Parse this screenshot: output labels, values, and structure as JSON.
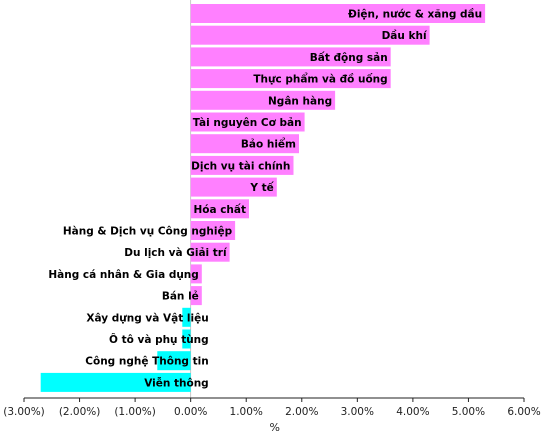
{
  "chart_data": {
    "type": "bar",
    "orientation": "horizontal",
    "xlabel": "%",
    "xlim": [
      -3,
      6
    ],
    "grid": false,
    "positive_color": "#ff80ff",
    "negative_color": "#00ffff",
    "x_ticks": [
      "(3.00%)",
      "(2.00%)",
      "(1.00%)",
      "0.00%",
      "1.00%",
      "2.00%",
      "3.00%",
      "4.00%",
      "5.00%",
      "6.00%"
    ],
    "categories": [
      "Điện, nước & xăng dầu",
      "Dầu khí",
      "Bất động sản",
      "Thực phẩm và đồ uống",
      "Ngân hàng",
      "Tài nguyên Cơ bản",
      "Bảo hiểm",
      "Dịch vụ tài chính",
      "Y tế",
      "Hóa chất",
      "Hàng & Dịch vụ Công nghiệp",
      "Du lịch và Giải trí",
      "Hàng cá nhân & Gia dụng",
      "Bán lẻ",
      "Xây dựng và Vật liệu",
      "Ô tô và phụ tùng",
      "Công nghệ Thông tin",
      "Viễn thông"
    ],
    "values": [
      5.3,
      4.3,
      3.6,
      3.6,
      2.6,
      2.05,
      1.95,
      1.85,
      1.55,
      1.05,
      0.8,
      0.7,
      0.2,
      0.2,
      -0.15,
      -0.15,
      -0.6,
      -2.7
    ]
  }
}
